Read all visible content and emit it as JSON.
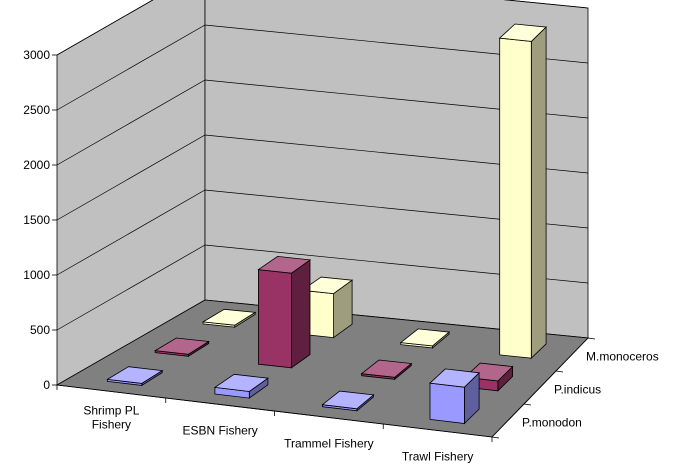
{
  "chart_data": {
    "type": "bar",
    "variant": "3d-column",
    "title": "",
    "xlabel": "",
    "ylabel": "",
    "categories": [
      "Shrimp PL Fishery",
      "ESBN Fishery",
      "Trammel Fishery",
      "Trawl Fishery"
    ],
    "category_labels": [
      [
        "Shrimp PL",
        "Fishery"
      ],
      [
        "ESBN Fishery"
      ],
      [
        "Trammel Fishery"
      ],
      [
        "Trawl Fishery"
      ]
    ],
    "series": [
      {
        "name": "P.monodon",
        "values": [
          0,
          60,
          0,
          330
        ],
        "color": "#9999ff"
      },
      {
        "name": "P.indicus",
        "values": [
          0,
          860,
          0,
          90
        ],
        "color": "#993366"
      },
      {
        "name": "M.monoceros",
        "values": [
          0,
          400,
          0,
          2880
        ],
        "color": "#ffffcc"
      }
    ],
    "ylim": [
      0,
      3000
    ],
    "yticks": [
      0,
      500,
      1000,
      1500,
      2000,
      2500,
      3000
    ],
    "grid": true,
    "walls_color": "#c0c0c0",
    "floor_color": "#808080"
  }
}
